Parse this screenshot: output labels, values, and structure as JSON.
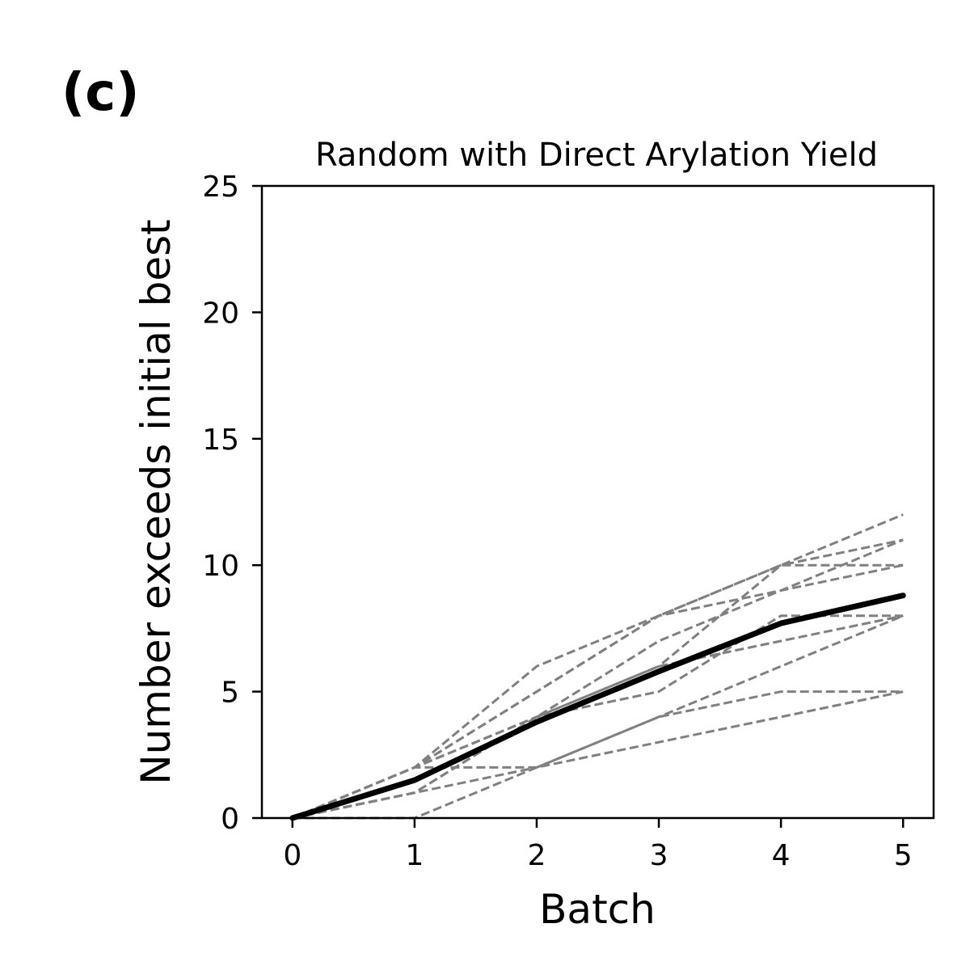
{
  "panel_label": "(c)",
  "chart_data": {
    "type": "line",
    "title": "Random with Direct Arylation Yield",
    "xlabel": "Batch",
    "ylabel": "Number exceeds initial best",
    "xlim": [
      -0.25,
      5.25
    ],
    "ylim": [
      0,
      25
    ],
    "xticks": [
      "0",
      "1",
      "2",
      "3",
      "4",
      "5"
    ],
    "yticks": [
      "0",
      "5",
      "10",
      "15",
      "20",
      "25"
    ],
    "grid": false,
    "legend": "none",
    "x": [
      0,
      1,
      2,
      3,
      4,
      5
    ],
    "series": [
      {
        "style": "dashed",
        "color": "#808080",
        "values": [
          0,
          2,
          6,
          8,
          10,
          12
        ]
      },
      {
        "style": "dashed",
        "color": "#808080",
        "values": [
          0,
          2,
          5,
          8,
          10,
          11
        ]
      },
      {
        "style": "dashed",
        "color": "#808080",
        "values": [
          0,
          2,
          5,
          8,
          9,
          10
        ]
      },
      {
        "style": "dashed",
        "color": "#808080",
        "values": [
          0,
          1,
          4,
          7,
          9,
          11
        ]
      },
      {
        "style": "dashed",
        "color": "#808080",
        "values": [
          0,
          2,
          4,
          6,
          10,
          10
        ]
      },
      {
        "style": "dashed",
        "color": "#808080",
        "values": [
          0,
          1,
          4,
          6,
          7,
          8
        ]
      },
      {
        "style": "dashed",
        "color": "#808080",
        "values": [
          0,
          2,
          4,
          5,
          8,
          8
        ]
      },
      {
        "style": "dashed",
        "color": "#808080",
        "values": [
          0,
          1,
          2,
          4,
          6,
          8
        ]
      },
      {
        "style": "dashed",
        "color": "#808080",
        "values": [
          0,
          2,
          2,
          4,
          5,
          5
        ]
      },
      {
        "style": "dashed",
        "color": "#808080",
        "values": [
          0,
          0,
          2,
          3,
          4,
          5
        ]
      },
      {
        "style": "solid",
        "color": "#000000",
        "values": [
          0,
          1.5,
          3.8,
          5.8,
          7.7,
          8.8
        ]
      }
    ]
  }
}
